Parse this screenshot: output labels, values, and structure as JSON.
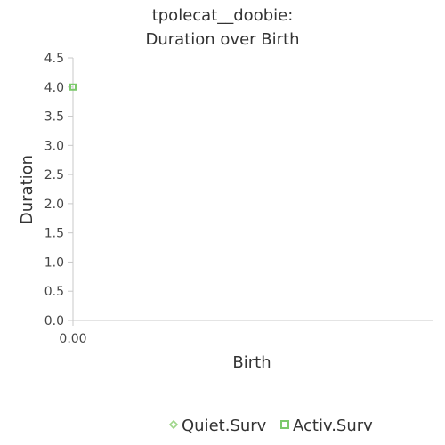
{
  "chart_data": {
    "type": "scatter",
    "title_lines": [
      "tpolecat__doobie:",
      "Duration over Birth"
    ],
    "xlabel": "Birth",
    "ylabel": "Duration",
    "xlim": [
      0,
      1
    ],
    "ylim": [
      0,
      4.5
    ],
    "x_ticks": [
      "0.00"
    ],
    "y_ticks": [
      "0.0",
      "0.5",
      "1.0",
      "1.5",
      "2.0",
      "2.5",
      "3.0",
      "3.5",
      "4.0",
      "4.5"
    ],
    "legend_position": "bottom",
    "series": [
      {
        "name": "Quiet.Surv",
        "marker": "diamond",
        "color": "#9ed689",
        "points": []
      },
      {
        "name": "Activ.Surv",
        "marker": "square",
        "color": "#7cc96c",
        "points": [
          {
            "x": 0,
            "y": 4.0
          }
        ]
      }
    ]
  }
}
